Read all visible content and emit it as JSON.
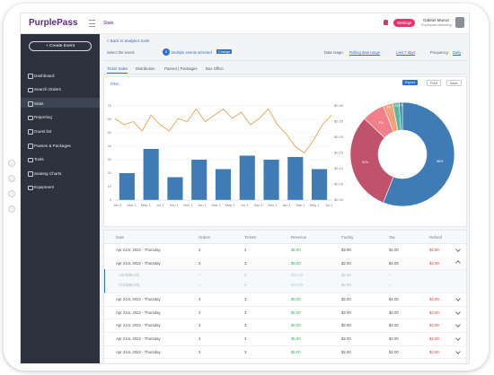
{
  "header": {
    "brand": "PurplePass",
    "page": "Stats",
    "settings": "Settings",
    "user_name": "Gabriel Munoz",
    "user_role": "Purplepass Marketing"
  },
  "sidebar": {
    "create": "+ Create Event",
    "items": [
      "Dashboard",
      "Search Orders",
      "Stats",
      "Reporting",
      "Guest list",
      "Passes & Packages",
      "Tools",
      "Seating Charts",
      "Equipment"
    ],
    "active": 2
  },
  "filters": {
    "back": "< Back to analytics tools",
    "select_label": "Select the event:",
    "event_count": "5",
    "selected": "Multiple events selected",
    "change": "Change",
    "date_label": "Date range:",
    "date_mode": "Rolling date range",
    "date_value": "Last 7 days",
    "frequency_label": "Frequency:",
    "frequency_value": "Daily"
  },
  "tabs": {
    "items": [
      "Ticket Sales",
      "Distribution",
      "Passes | Packages",
      "Box Office"
    ],
    "active": 0
  },
  "toolbar": {
    "filter": "Filter",
    "export": "Export",
    "print": "Print",
    "save": "Save"
  },
  "chart_data": [
    {
      "type": "bar",
      "xticks": [
        "Jan 1",
        "Mar 1",
        "May 1",
        "Jul 1",
        "Sep 1",
        "Nov 1",
        "Jan 1",
        "Mar 1",
        "May 1",
        "Jul 1",
        "Sep 1",
        "Nov 1",
        "Jan 1",
        "Mar 1",
        "May 1",
        "Jul 1"
      ],
      "series": [
        {
          "color": "#3f7cb5",
          "values": [
            20,
            38,
            17,
            30,
            23,
            33,
            30,
            32,
            23
          ]
        },
        {
          "type": "line",
          "axis": "y2",
          "color": "#f0a04b",
          "values": [
            0.26,
            0.24,
            0.25,
            0.22,
            0.27,
            0.24,
            0.22,
            0.26,
            0.25,
            0.29,
            0.25,
            0.27,
            0.29,
            0.26,
            0.28,
            0.24,
            0.26,
            0.29,
            0.24,
            0.21,
            0.17,
            0.15,
            0.19,
            0.24,
            0.27
          ]
        }
      ],
      "ylim": [
        0,
        70
      ],
      "yticks": [
        0,
        10,
        20,
        30,
        40,
        50,
        60,
        70
      ],
      "y2lim": [
        0,
        0.3
      ],
      "y2ticks": [
        {
          "value": 0,
          "label": "$0.00"
        },
        {
          "value": 0.05,
          "label": "$0.05"
        },
        {
          "value": 0.1,
          "label": "$0.10"
        },
        {
          "value": 0.15,
          "label": "$0.15"
        },
        {
          "value": 0.2,
          "label": "$0.20"
        },
        {
          "value": 0.25,
          "label": "$0.25"
        },
        {
          "value": 0.3,
          "label": "$0.30"
        }
      ],
      "grid": true
    },
    {
      "type": "pie",
      "donut": true,
      "values": [
        56,
        31,
        7,
        3,
        2,
        1
      ],
      "value_labels": [
        "56%",
        "31%",
        "7%",
        "3%",
        "2%",
        "1%"
      ],
      "colors": [
        "#3f7cb5",
        "#c0526b",
        "#f07f8a",
        "#f3a07d",
        "#5db79e",
        "#2f8fa8"
      ]
    }
  ],
  "table": {
    "columns": [
      "Date",
      "Orders",
      "Tickets",
      "Revenue",
      "Facility",
      "Tax",
      "Refund"
    ],
    "rows": [
      {
        "cells": [
          "Apr 21st, 2022 - Thursday",
          "2",
          "2",
          "$5.00",
          "$2.00",
          "$2.00",
          "$2.00"
        ]
      },
      {
        "cells": [
          "Apr 21st, 2022 - Thursday",
          "3",
          "3",
          "$5.00",
          "$2.00",
          "$2.00",
          "$2.00"
        ],
        "children": [
          [
            "Adult($6.00)",
            "–",
            "3",
            "$24.00",
            "$2.00",
            "–"
          ],
          [
            "Child($6.00)",
            "–",
            "4",
            "$24.00",
            "$2.00",
            "–"
          ]
        ]
      },
      {
        "cells": [
          "Apr 21st, 2022 - Thursday",
          "3",
          "3",
          "$5.00",
          "$2.00",
          "$2.00",
          "$2.00"
        ]
      },
      {
        "cells": [
          "Apr 21st, 2022 - Thursday",
          "3",
          "3",
          "$5.00",
          "$2.00",
          "$2.00",
          "$2.00"
        ]
      },
      {
        "cells": [
          "Apr 21st, 2022 - Thursday",
          "3",
          "3",
          "$5.00",
          "$2.00",
          "$2.00",
          "$2.00"
        ]
      },
      {
        "cells": [
          "Apr 21st, 2022 - Thursday",
          "3",
          "3",
          "$5.00",
          "$2.00",
          "$2.00",
          "$2.00"
        ]
      },
      {
        "cells": [
          "Apr 21st, 2022 - Thursday",
          "3",
          "3",
          "$5.00",
          "$2.00",
          "$2.00",
          "$2.00"
        ]
      }
    ]
  }
}
